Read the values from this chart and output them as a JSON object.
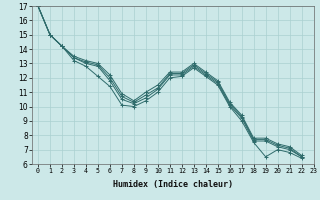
{
  "title": "",
  "xlabel": "Humidex (Indice chaleur)",
  "ylabel": "",
  "bg_color": "#cce8e8",
  "grid_color": "#aad0d0",
  "line_color": "#2e6b6b",
  "xlim": [
    -0.5,
    23.0
  ],
  "ylim": [
    6,
    17
  ],
  "xticks": [
    0,
    1,
    2,
    3,
    4,
    5,
    6,
    7,
    8,
    9,
    10,
    11,
    12,
    13,
    14,
    15,
    16,
    17,
    18,
    19,
    20,
    21,
    22,
    23
  ],
  "yticks": [
    6,
    7,
    8,
    9,
    10,
    11,
    12,
    13,
    14,
    15,
    16,
    17
  ],
  "series": [
    [
      17,
      15,
      14.2,
      13.2,
      12.8,
      12.1,
      11.4,
      10.1,
      10.0,
      10.4,
      11.0,
      12.0,
      12.1,
      12.7,
      12.1,
      11.5,
      10.0,
      9.0,
      7.5,
      6.5,
      7.0,
      6.8,
      6.4
    ],
    [
      17,
      15,
      14.2,
      13.4,
      13.0,
      12.8,
      11.8,
      10.5,
      10.2,
      10.6,
      11.2,
      12.2,
      12.2,
      12.8,
      12.2,
      11.6,
      10.1,
      9.2,
      7.6,
      7.6,
      7.2,
      7.0,
      6.5
    ],
    [
      17,
      15,
      14.2,
      13.4,
      13.1,
      12.9,
      12.0,
      10.7,
      10.3,
      10.8,
      11.3,
      12.3,
      12.3,
      12.9,
      12.3,
      11.7,
      10.2,
      9.3,
      7.7,
      7.7,
      7.3,
      7.1,
      6.5
    ],
    [
      17,
      15,
      14.2,
      13.5,
      13.2,
      13.0,
      12.2,
      10.9,
      10.4,
      11.0,
      11.5,
      12.4,
      12.4,
      13.0,
      12.4,
      11.8,
      10.3,
      9.4,
      7.8,
      7.8,
      7.4,
      7.2,
      6.6
    ]
  ],
  "xlabel_fontsize": 6.0,
  "tick_fontsize": 4.8,
  "ytick_fontsize": 5.5
}
